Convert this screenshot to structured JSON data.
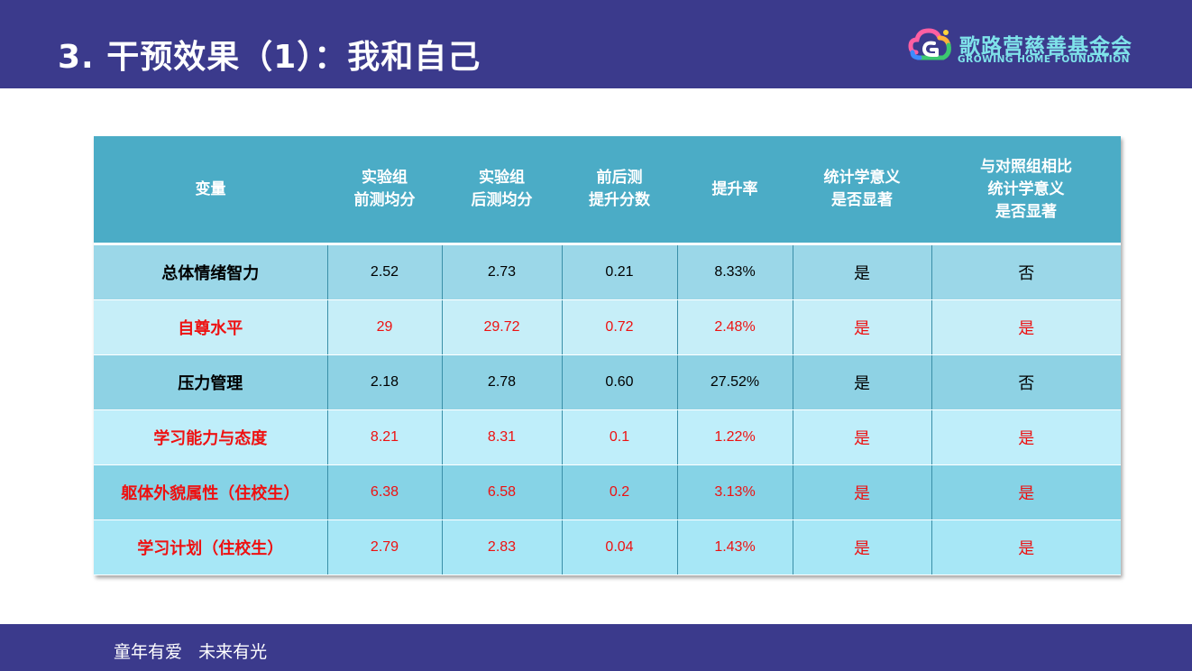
{
  "header": {
    "title": "3. 干预效果（1）：我和自己",
    "logo_cn": "歌路营慈善基金会",
    "logo_en": "GROWING HOME FOUNDATION",
    "bg_color": "#3b3a8c"
  },
  "table": {
    "columns": [
      "变量",
      "实验组\n前测均分",
      "实验组\n后测均分",
      "前后测\n提升分数",
      "提升率",
      "统计学意义\n是否显著",
      "与对照组相比\n统计学意义\n是否显著"
    ],
    "rows": [
      {
        "variable": "总体情绪智力",
        "pre": "2.52",
        "post": "2.73",
        "gain": "0.21",
        "rate": "8.33%",
        "significant": "是",
        "vs_control": "否",
        "highlight": false
      },
      {
        "variable": "自尊水平",
        "pre": "29",
        "post": "29.72",
        "gain": "0.72",
        "rate": "2.48%",
        "significant": "是",
        "vs_control": "是",
        "highlight": true
      },
      {
        "variable": "压力管理",
        "pre": "2.18",
        "post": "2.78",
        "gain": "0.60",
        "rate": "27.52%",
        "significant": "是",
        "vs_control": "否",
        "highlight": false
      },
      {
        "variable": "学习能力与态度",
        "pre": "8.21",
        "post": "8.31",
        "gain": "0.1",
        "rate": "1.22%",
        "significant": "是",
        "vs_control": "是",
        "highlight": true
      },
      {
        "variable": "躯体外貌属性（住校生）",
        "pre": "6.38",
        "post": "6.58",
        "gain": "0.2",
        "rate": "3.13%",
        "significant": "是",
        "vs_control": "是",
        "highlight": true
      },
      {
        "variable": "学习计划（住校生）",
        "pre": "2.79",
        "post": "2.83",
        "gain": "0.04",
        "rate": "1.43%",
        "significant": "是",
        "vs_control": "是",
        "highlight": true
      }
    ],
    "highlight_color": "#ee1111",
    "header_color": "#4bacc6"
  },
  "footer": {
    "slogan": "童年有爱   未来有光"
  }
}
